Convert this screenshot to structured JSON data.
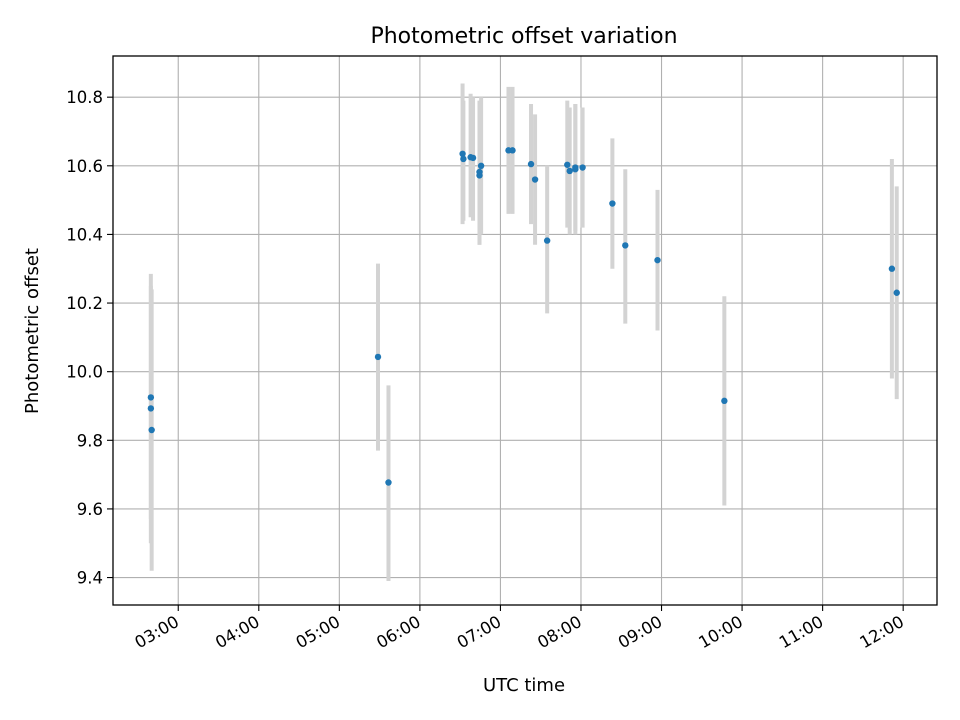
{
  "chart_data": {
    "type": "scatter",
    "title": "Photometric offset variation",
    "xlabel": "UTC time",
    "ylabel": "Photometric offset",
    "x_unit": "hours UTC",
    "x_ticks": [
      {
        "value": 3,
        "label": "03:00"
      },
      {
        "value": 4,
        "label": "04:00"
      },
      {
        "value": 5,
        "label": "05:00"
      },
      {
        "value": 6,
        "label": "06:00"
      },
      {
        "value": 7,
        "label": "07:00"
      },
      {
        "value": 8,
        "label": "08:00"
      },
      {
        "value": 9,
        "label": "09:00"
      },
      {
        "value": 10,
        "label": "10:00"
      },
      {
        "value": 11,
        "label": "11:00"
      },
      {
        "value": 12,
        "label": "12:00"
      }
    ],
    "y_ticks": [
      {
        "value": 9.4,
        "label": "9.4"
      },
      {
        "value": 9.6,
        "label": "9.6"
      },
      {
        "value": 9.8,
        "label": "9.8"
      },
      {
        "value": 10.0,
        "label": "10.0"
      },
      {
        "value": 10.2,
        "label": "10.2"
      },
      {
        "value": 10.4,
        "label": "10.4"
      },
      {
        "value": 10.6,
        "label": "10.6"
      },
      {
        "value": 10.8,
        "label": "10.8"
      }
    ],
    "xlim": [
      2.19,
      12.42
    ],
    "ylim": [
      9.32,
      10.92
    ],
    "grid": true,
    "marker_color": "#1f77b4",
    "errorbar_color": "#d3d3d3",
    "points": [
      {
        "t": 2.66,
        "y": 9.925,
        "lo": 9.57,
        "hi": 10.285
      },
      {
        "t": 2.66,
        "y": 9.893,
        "lo": 9.5,
        "hi": 10.25
      },
      {
        "t": 2.67,
        "y": 9.83,
        "lo": 9.42,
        "hi": 10.24
      },
      {
        "t": 5.48,
        "y": 10.043,
        "lo": 9.77,
        "hi": 10.315
      },
      {
        "t": 5.61,
        "y": 9.677,
        "lo": 9.39,
        "hi": 9.96
      },
      {
        "t": 6.53,
        "y": 10.635,
        "lo": 10.43,
        "hi": 10.84
      },
      {
        "t": 6.54,
        "y": 10.62,
        "lo": 10.44,
        "hi": 10.79
      },
      {
        "t": 6.63,
        "y": 10.625,
        "lo": 10.45,
        "hi": 10.81
      },
      {
        "t": 6.66,
        "y": 10.623,
        "lo": 10.44,
        "hi": 10.8
      },
      {
        "t": 6.74,
        "y": 10.582,
        "lo": 10.37,
        "hi": 10.79
      },
      {
        "t": 6.74,
        "y": 10.572,
        "lo": 10.37,
        "hi": 10.77
      },
      {
        "t": 6.76,
        "y": 10.6,
        "lo": 10.4,
        "hi": 10.8
      },
      {
        "t": 7.1,
        "y": 10.645,
        "lo": 10.46,
        "hi": 10.83
      },
      {
        "t": 7.15,
        "y": 10.645,
        "lo": 10.46,
        "hi": 10.83
      },
      {
        "t": 7.38,
        "y": 10.605,
        "lo": 10.43,
        "hi": 10.78
      },
      {
        "t": 7.43,
        "y": 10.56,
        "lo": 10.37,
        "hi": 10.75
      },
      {
        "t": 7.58,
        "y": 10.382,
        "lo": 10.17,
        "hi": 10.6
      },
      {
        "t": 7.83,
        "y": 10.603,
        "lo": 10.42,
        "hi": 10.79
      },
      {
        "t": 7.86,
        "y": 10.585,
        "lo": 10.4,
        "hi": 10.77
      },
      {
        "t": 7.93,
        "y": 10.595,
        "lo": 10.41,
        "hi": 10.78
      },
      {
        "t": 7.93,
        "y": 10.59,
        "lo": 10.4,
        "hi": 10.78
      },
      {
        "t": 8.02,
        "y": 10.595,
        "lo": 10.42,
        "hi": 10.77
      },
      {
        "t": 8.39,
        "y": 10.49,
        "lo": 10.3,
        "hi": 10.68
      },
      {
        "t": 8.55,
        "y": 10.368,
        "lo": 10.14,
        "hi": 10.59
      },
      {
        "t": 8.95,
        "y": 10.325,
        "lo": 10.12,
        "hi": 10.53
      },
      {
        "t": 9.78,
        "y": 9.915,
        "lo": 9.61,
        "hi": 10.22
      },
      {
        "t": 11.86,
        "y": 10.3,
        "lo": 9.98,
        "hi": 10.62
      },
      {
        "t": 11.92,
        "y": 10.23,
        "lo": 9.92,
        "hi": 10.54
      }
    ]
  }
}
